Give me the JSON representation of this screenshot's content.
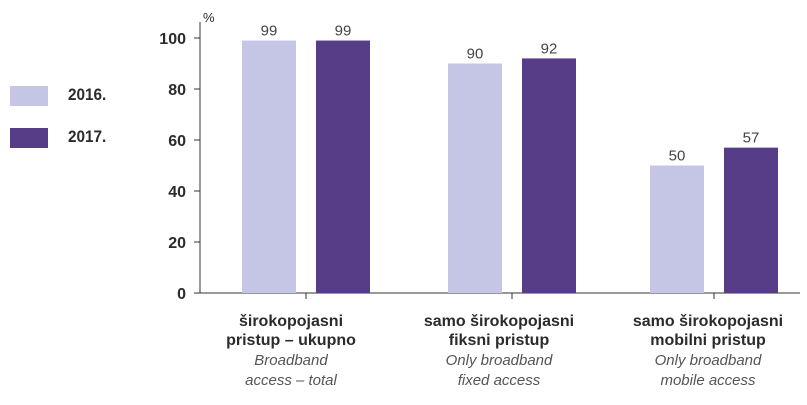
{
  "chart_data": {
    "type": "bar",
    "unit": "%",
    "ylim": [
      0,
      100
    ],
    "yticks": [
      0,
      20,
      40,
      60,
      80,
      100
    ],
    "grid": false,
    "legend_position": "left",
    "categories": [
      {
        "line1": "širokopojasni",
        "line2": "pristup – ukupno",
        "en1": "Broadband",
        "en2": "access – total"
      },
      {
        "line1": "samo širokopojasni",
        "line2": "fiksni pristup",
        "en1": "Only broadband",
        "en2": "fixed access"
      },
      {
        "line1": "samo širokopojasni",
        "line2": "mobilni pristup",
        "en1": "Only broadband",
        "en2": "mobile access"
      }
    ],
    "series": [
      {
        "name": "2016.",
        "color": "#c5c5e6",
        "values": [
          99,
          90,
          50
        ]
      },
      {
        "name": "2017.",
        "color": "#573d88",
        "values": [
          99,
          92,
          57
        ]
      }
    ]
  }
}
